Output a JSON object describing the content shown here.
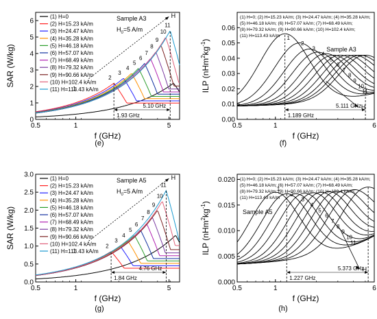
{
  "chart_data": [
    {
      "id": "e",
      "type": "line",
      "panel_label": "(e)",
      "sample": "Sample A3",
      "field_note": "H",
      "field_note_sub": "0",
      "field_note_rest": "=5 A/m",
      "xlabel": "f (GHz)",
      "ylabel": "SAR (W/kg)",
      "xscale": "log",
      "xlim": [
        0.5,
        6
      ],
      "ylim": [
        0,
        6.5
      ],
      "xticks": [
        0.5,
        1,
        5
      ],
      "yticks": [
        0,
        1,
        2,
        3,
        4,
        5,
        6
      ],
      "ann_left": "1.93 GHz",
      "ann_right": "5.10 GHz",
      "legend": [
        "(1) H=0",
        "(2) H=15.23 kA/m",
        "(3) H=24.47 kA/m",
        "(4) H=35.28 kA/m",
        "(5) H=46.18 kA/m",
        "(6) H=57.07 kA/m",
        "(7) H=68.49 kA/m",
        "(8) H=79.32 kA/m",
        "(9) H=90.66 kA/m",
        "(10) H=102.4 kA/m",
        "(11) H=113.43 kA/m"
      ],
      "curve_labels": [
        "1",
        "2",
        "3",
        "4",
        "5",
        "6",
        "7",
        "8",
        "9",
        "10",
        "11"
      ],
      "arrow_label": "H",
      "series_peak_f": [
        5.4,
        1.93,
        2.28,
        2.62,
        2.95,
        3.28,
        3.63,
        3.98,
        4.35,
        4.72,
        5.1
      ],
      "series_peak_v": [
        2.2,
        2.2,
        2.5,
        2.8,
        3.1,
        3.4,
        3.7,
        4.1,
        4.5,
        5.0,
        5.4
      ]
    },
    {
      "id": "f",
      "type": "line",
      "panel_label": "(f)",
      "sample": "Sample A3",
      "xlabel": "f (GHz)",
      "ylabel": "ILP (nHm",
      "ylabel_sup": "2",
      "ylabel_mid": "kg",
      "ylabel_sup2": "-1",
      "ylabel_end": ")",
      "xscale": "log",
      "xlim": [
        0.5,
        6
      ],
      "ylim": [
        0,
        0.07
      ],
      "xticks": [
        0.5,
        1,
        6
      ],
      "yticks": [
        0.0,
        0.01,
        0.02,
        0.03,
        0.04,
        0.05,
        0.06
      ],
      "ann_left": "1.189 GHz",
      "ann_right": "5.111 GHz",
      "legend_lines": [
        "(1) H=0; (2) H=15.23 kA/m; (3) H=24.47 kA/m; (4) H=35.28 kA/m;",
        "(5) H=46.18 kA/m; (6) H=57.07 kA/m; (7) H=68.49 kA/m;",
        "(8) H=79.32 kA/m; (9) H=90.66 kA/m; (10) H=102.4 kA/m;",
        "(11) H=113.43 kA/m"
      ],
      "curve_labels": [
        "1",
        "2",
        "3",
        "4",
        "5",
        "6",
        "7",
        "8",
        "9",
        "10",
        "11"
      ],
      "arrow_label": "H",
      "series_peak_f": [
        1.19,
        1.55,
        1.85,
        2.15,
        2.5,
        2.85,
        3.25,
        3.7,
        4.2,
        4.65,
        5.11
      ],
      "series_peak_v": [
        0.056,
        0.05,
        0.046,
        0.044,
        0.043,
        0.042,
        0.042,
        0.042,
        0.042,
        0.042,
        0.042
      ]
    },
    {
      "id": "g",
      "type": "line",
      "panel_label": "(g)",
      "sample": "Sample A5",
      "field_note": "H",
      "field_note_sub": "0",
      "field_note_rest": "=5 A/m",
      "xlabel": "f (GHz)",
      "ylabel": "SAR (W/kg)",
      "xscale": "log",
      "xlim": [
        0.5,
        6
      ],
      "ylim": [
        0,
        3
      ],
      "xticks": [
        0.5,
        1,
        5
      ],
      "yticks": [
        0.0,
        0.5,
        1.0,
        1.5,
        2.0,
        2.5,
        3.0
      ],
      "ann_left": "1.84 GHz",
      "ann_right": "4.76 GHz",
      "legend": [
        "(1) H=0",
        "(2) H=15.23 kA/m",
        "(3) H=24.47 kA/m",
        "(4) H=35.28 kA/m",
        "(5) H=46.18 kA/m",
        "(6) H=57.07 kA/m",
        "(7) H=68.49 kA/m",
        "(8) H=79.32 kA/m",
        "(9) H=90.66 kA/m",
        "(10) H=102.4 kA/m",
        "(11) H=113.43 kA/m"
      ],
      "curve_labels": [
        "1",
        "2",
        "3",
        "4",
        "5",
        "6",
        "7",
        "8",
        "9",
        "10",
        "11"
      ],
      "arrow_label": "H",
      "series_peak_f": [
        5.6,
        1.84,
        2.15,
        2.45,
        2.75,
        3.05,
        3.4,
        3.75,
        4.1,
        4.45,
        4.76
      ],
      "series_peak_v": [
        1.3,
        0.85,
        1.0,
        1.15,
        1.3,
        1.45,
        1.62,
        1.8,
        2.0,
        2.25,
        2.55
      ]
    },
    {
      "id": "h",
      "type": "line",
      "panel_label": "(h)",
      "sample": "Sample A5",
      "xlabel": "f (GHz)",
      "ylabel": "ILP (nHm",
      "ylabel_sup": "2",
      "ylabel_mid": "kg",
      "ylabel_sup2": "-1",
      "ylabel_end": ")",
      "xscale": "log",
      "xlim": [
        0.5,
        6
      ],
      "ylim": [
        0,
        0.021
      ],
      "xticks": [
        0.5,
        1,
        6
      ],
      "yticks": [
        0.0,
        0.005,
        0.01,
        0.015,
        0.02
      ],
      "ytick_labels": [
        "0.000",
        "0.005",
        "0.010",
        "0.015",
        "0.020"
      ],
      "ann_left": "1.227 GHz",
      "ann_right": "5.373 GHz",
      "legend_lines": [
        "(1) H=0; (2) H=15.23 kA/m; (3) H=24.47 kA/m; (4) H=35.28 kA/m;",
        "(5) H=46.18 kA/m; (6) H=57.07 kA/m; (7) H=68.49 kA/m;",
        "(8) H=79.32 kA/m; (9) H=90.66 kA/m; (10) H=102.4 kA/m;",
        "(11) H=113.43 kA/m"
      ],
      "curve_labels": [
        "1",
        "2",
        "3",
        "4",
        "5",
        "6",
        "7",
        "8",
        "9",
        "10",
        "11"
      ],
      "arrow_label": "H",
      "series_peak_f": [
        1.0,
        1.23,
        1.45,
        1.7,
        2.0,
        2.3,
        2.65,
        3.05,
        3.55,
        4.2,
        5.37
      ],
      "series_peak_v": [
        0.0175,
        0.0172,
        0.0172,
        0.0173,
        0.0174,
        0.0175,
        0.0176,
        0.0177,
        0.0179,
        0.018,
        0.0185
      ]
    }
  ],
  "colors": [
    "#000000",
    "#ff2020",
    "#2020ff",
    "#ff9000",
    "#2a9d2a",
    "#1030a0",
    "#b020b0",
    "#7a3aa0",
    "#7a2020",
    "#e0607a",
    "#1a9ad0"
  ]
}
